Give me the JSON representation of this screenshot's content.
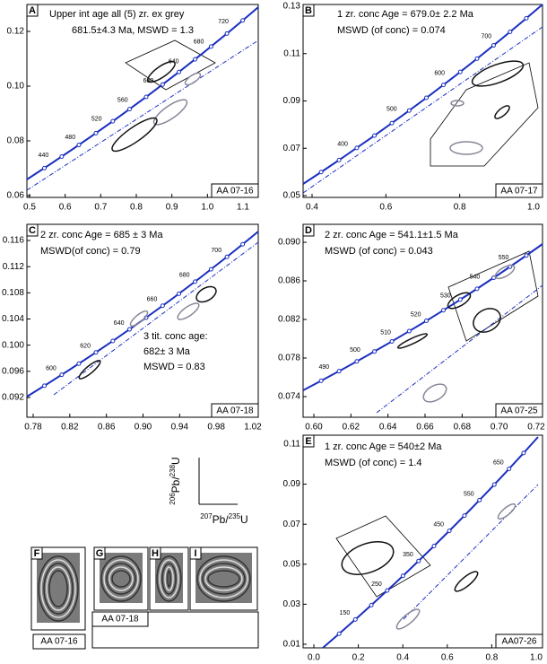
{
  "panels": [
    {
      "letter": "A",
      "annotation": [
        "Upper int age all (5) zr. ex grey",
        "681.5±4.3 Ma, MSWD = 1.3"
      ],
      "sample": "AA 07-16",
      "xticks": [
        "0.5",
        "0.6",
        "0.7",
        "0.8",
        "0.9",
        "1.0",
        "1.1"
      ],
      "yticks": [
        "0.12",
        "0.10",
        "0.08",
        "0.06"
      ],
      "ages": [
        "440",
        "480",
        "520",
        "560",
        "600",
        "640",
        "680",
        "720"
      ]
    },
    {
      "letter": "B",
      "annotation": [
        "1 zr. conc Age = 679.0± 2.2 Ma",
        "MSWD  (of conc) = 0.074"
      ],
      "sample": "AA 07-17",
      "xticks": [
        "0.4",
        "0.6",
        "0.8",
        "1.0"
      ],
      "yticks": [
        "0.13",
        "0.11",
        "0.09",
        "0.07",
        "0.05"
      ],
      "ages": [
        "400",
        "500",
        "600",
        "700"
      ]
    },
    {
      "letter": "C",
      "annotation": [
        "2 zr. conc Age = 685 ± 3 Ma",
        "MSWD(of conc) = 0.79"
      ],
      "annotation2": [
        "3 tit. conc age:",
        "682±  3 Ma",
        "MSWD = 0.83"
      ],
      "sample": "AA 07-18",
      "xticks": [
        "0.78",
        "0.82",
        "0.86",
        "0.90",
        "0.94",
        "0.98",
        "1.02"
      ],
      "yticks": [
        "0.116",
        "0.112",
        "0.108",
        "0.104",
        "0.100",
        "0.096",
        "0.092"
      ],
      "ages": [
        "600",
        "620",
        "640",
        "660",
        "680",
        "700"
      ]
    },
    {
      "letter": "D",
      "annotation": [
        "2 zr. conc Age = 541.1±1.5 Ma",
        "MSWD (of conc) = 0.043"
      ],
      "sample": "AA 07-25",
      "xticks": [
        "0.60",
        "0.62",
        "0.64",
        "0.66",
        "0.68",
        "0.70",
        "0.72"
      ],
      "yticks": [
        "0.090",
        "0.086",
        "0.082",
        "0.078",
        "0.074"
      ],
      "ages": [
        "490",
        "500",
        "510",
        "520",
        "530",
        "540",
        "550"
      ]
    },
    {
      "letter": "E",
      "annotation": [
        "1 zr. conc Age = 540±2 Ma",
        "MSWD (of conc) = 1.4"
      ],
      "sample": "AA07-26",
      "xticks": [
        "0.0",
        "0.2",
        "0.4",
        "0.6",
        "0.8",
        "1.0"
      ],
      "yticks": [
        "0.11",
        "0.09",
        "0.07",
        "0.05",
        "0.03",
        "0.01"
      ],
      "ages": [
        "150",
        "250",
        "350",
        "450",
        "550",
        "650"
      ]
    }
  ],
  "y_axis_label": {
    "m1": "206",
    "e1": "Pb/",
    "m2": "238",
    "e2": "U"
  },
  "x_axis_label": {
    "m1": "207",
    "e1": "Pb/",
    "m2": "235",
    "e2": "U"
  },
  "images": [
    "F",
    "G",
    "H",
    "I"
  ],
  "image_captions": [
    "AA 07-16",
    "AA 07-18"
  ]
}
